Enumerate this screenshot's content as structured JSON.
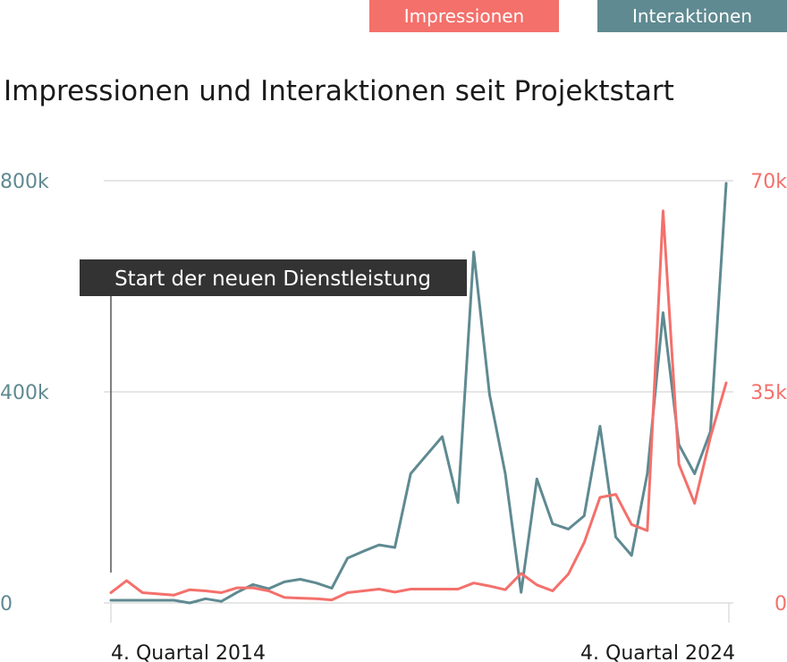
{
  "colors": {
    "impressions": "#f4706b",
    "interactions": "#5f8a91",
    "grid": "#cccccc",
    "annotation_bg": "#333333",
    "text": "#1a1a1a"
  },
  "chart_data": {
    "type": "line",
    "title": "Impressionen und Interaktionen seit Projektstart",
    "legend": {
      "placement": "top-right",
      "entries": [
        "Impressionen",
        "Interaktionen"
      ]
    },
    "grid": true,
    "x_ticks": [
      "4. Quartal 2014",
      "4. Quartal 2024"
    ],
    "y_left": {
      "ticks": [
        "0",
        "400k",
        "800k"
      ],
      "range": [
        0,
        800000
      ]
    },
    "y_right": {
      "ticks": [
        "0",
        "35k",
        "70k"
      ],
      "range": [
        0,
        70000
      ]
    },
    "annotation": {
      "text": "Start der neuen Dienstleistung"
    },
    "series": [
      {
        "name": "Interaktionen",
        "axis": "left",
        "values": [
          5000,
          5000,
          5000,
          5000,
          5000,
          0,
          8000,
          3000,
          20000,
          35000,
          27000,
          40000,
          45000,
          38000,
          28000,
          85000,
          98000,
          110000,
          105000,
          245000,
          280000,
          315000,
          190000,
          665000,
          395000,
          245000,
          20000,
          235000,
          150000,
          140000,
          165000,
          335000,
          125000,
          90000,
          245000,
          550000,
          300000,
          245000,
          325000,
          795000
        ]
      },
      {
        "name": "Impressionen",
        "axis": "right",
        "values": [
          1700,
          3700,
          1700,
          1500,
          1300,
          2200,
          2000,
          1700,
          2500,
          2500,
          2000,
          900,
          800,
          700,
          500,
          1700,
          2000,
          2300,
          1800,
          2300,
          2300,
          2300,
          2300,
          3300,
          2800,
          2200,
          4900,
          3000,
          2000,
          4800,
          10000,
          17500,
          18000,
          13000,
          12000,
          65000,
          23000,
          16500,
          27500,
          36500
        ]
      }
    ]
  }
}
